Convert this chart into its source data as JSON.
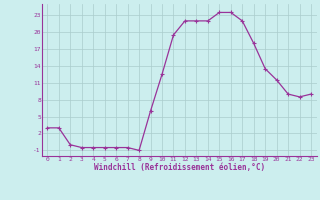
{
  "hours": [
    0,
    1,
    2,
    3,
    4,
    5,
    6,
    7,
    8,
    9,
    10,
    11,
    12,
    13,
    14,
    15,
    16,
    17,
    18,
    19,
    20,
    21,
    22,
    23
  ],
  "values": [
    3,
    3,
    0,
    -0.5,
    -0.5,
    -0.5,
    -0.5,
    -0.5,
    -1,
    6,
    12.5,
    19.5,
    22,
    22,
    22,
    23.5,
    23.5,
    22,
    18,
    13.5,
    11.5,
    9,
    8.5,
    9
  ],
  "line_color": "#993399",
  "marker": "+",
  "bg_color": "#cceeee",
  "grid_color": "#aacccc",
  "xlabel": "Windchill (Refroidissement éolien,°C)",
  "xlabel_color": "#993399",
  "yticks": [
    -1,
    2,
    5,
    8,
    11,
    14,
    17,
    20,
    23
  ],
  "xticks": [
    0,
    1,
    2,
    3,
    4,
    5,
    6,
    7,
    8,
    9,
    10,
    11,
    12,
    13,
    14,
    15,
    16,
    17,
    18,
    19,
    20,
    21,
    22,
    23
  ],
  "ylim": [
    -2,
    25
  ],
  "xlim": [
    -0.5,
    23.5
  ]
}
